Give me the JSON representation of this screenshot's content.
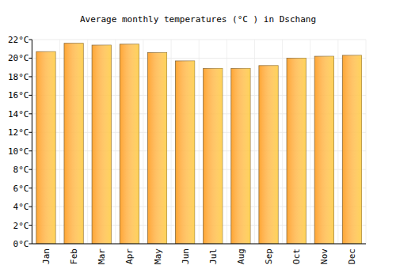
{
  "chart_data": {
    "type": "bar",
    "title": "Average monthly temperatures (°C ) in Dschang",
    "categories": [
      "Jan",
      "Feb",
      "Mar",
      "Apr",
      "May",
      "Jun",
      "Jul",
      "Aug",
      "Sep",
      "Oct",
      "Nov",
      "Dec"
    ],
    "values": [
      20.7,
      21.6,
      21.4,
      21.5,
      20.6,
      19.7,
      18.9,
      18.9,
      19.2,
      20.0,
      20.2,
      20.3
    ],
    "color": "#ffa531",
    "ylim": [
      0,
      22
    ],
    "yticks": [
      {
        "value": 0,
        "label": "0°C"
      },
      {
        "value": 2,
        "label": "2°C"
      },
      {
        "value": 4,
        "label": "4°C"
      },
      {
        "value": 6,
        "label": "6°C"
      },
      {
        "value": 8,
        "label": "8°C"
      },
      {
        "value": 10,
        "label": "10°C"
      },
      {
        "value": 12,
        "label": "12°C"
      },
      {
        "value": 14,
        "label": "14°C"
      },
      {
        "value": 16,
        "label": "16°C"
      },
      {
        "value": 18,
        "label": "18°C"
      },
      {
        "value": 20,
        "label": "20°C"
      },
      {
        "value": 22,
        "label": "22°C"
      }
    ],
    "grid": true
  }
}
